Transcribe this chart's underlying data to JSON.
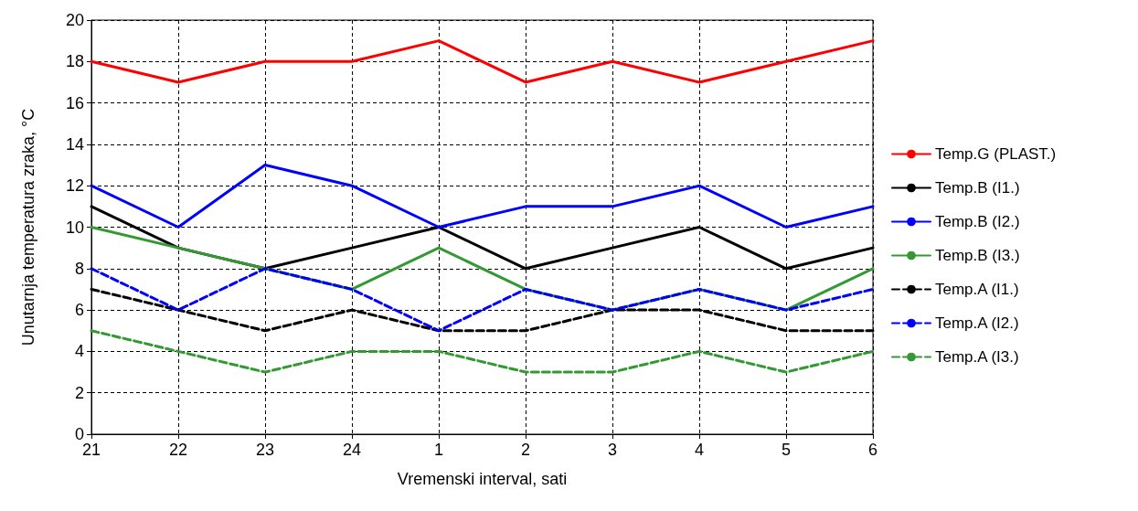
{
  "chart_data": {
    "type": "line",
    "xlabel": "Vremenski interval, sati",
    "ylabel": "Unutarnja temperatura zraka, °C",
    "categories": [
      "21",
      "22",
      "23",
      "24",
      "1",
      "2",
      "3",
      "4",
      "5",
      "6"
    ],
    "series": [
      {
        "name": "Temp.G (PLAST.)",
        "color": "#ff0000",
        "line_style": "solid",
        "values": [
          18,
          17,
          18,
          18,
          19,
          17,
          18,
          17,
          18,
          19
        ]
      },
      {
        "name": "Temp.B (I1.)",
        "color": "#000000",
        "line_style": "solid",
        "values": [
          11,
          9,
          8,
          9,
          10,
          8,
          9,
          10,
          8,
          9
        ]
      },
      {
        "name": "Temp.B (I2.)",
        "color": "#0000ff",
        "line_style": "solid",
        "values": [
          12,
          10,
          13,
          12,
          10,
          11,
          11,
          12,
          10,
          11
        ]
      },
      {
        "name": "Temp.B (I3.)",
        "color": "#339933",
        "line_style": "solid",
        "values": [
          10,
          9,
          8,
          7,
          9,
          7,
          6,
          7,
          6,
          8
        ]
      },
      {
        "name": "Temp.A (I1.)",
        "color": "#000000",
        "line_style": "dashed",
        "values": [
          7,
          6,
          5,
          6,
          5,
          5,
          6,
          6,
          5,
          5
        ]
      },
      {
        "name": "Temp.A (I2.)",
        "color": "#0000ff",
        "line_style": "dashed",
        "values": [
          8,
          6,
          8,
          7,
          5,
          7,
          6,
          7,
          6,
          7
        ]
      },
      {
        "name": "Temp.A (I3.)",
        "color": "#339933",
        "line_style": "dashed",
        "values": [
          5,
          4,
          3,
          4,
          4,
          3,
          3,
          4,
          3,
          4
        ]
      }
    ],
    "ylim": [
      0,
      20
    ],
    "yticks": [
      0,
      2,
      4,
      6,
      8,
      10,
      12,
      14,
      16,
      18,
      20
    ],
    "grid": true,
    "legend": "right",
    "marker": "none"
  }
}
